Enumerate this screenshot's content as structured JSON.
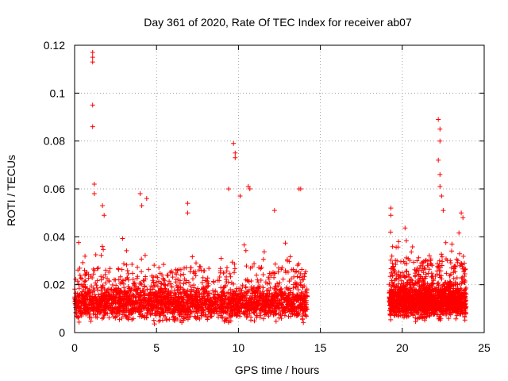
{
  "chart_data": {
    "type": "scatter",
    "title": "Day 361 of 2020, Rate Of TEC Index for receiver ab07",
    "xlabel": "GPS time / hours",
    "ylabel": "ROTI / TECUs",
    "xlim": [
      0,
      25
    ],
    "ylim": [
      0,
      0.12
    ],
    "x_ticks": [
      0,
      5,
      10,
      15,
      20,
      25
    ],
    "x_tick_labels": [
      "0",
      "5",
      "10",
      "15",
      "20",
      "25"
    ],
    "y_ticks": [
      0,
      0.02,
      0.04,
      0.06,
      0.08,
      0.1,
      0.12
    ],
    "y_tick_labels": [
      "0",
      "0.02",
      "0.04",
      "0.06",
      "0.08",
      "0.1",
      "0.12"
    ],
    "grid": true,
    "marker": "+",
    "series_color": "#ff0000",
    "series": [
      {
        "name": "ROTI",
        "segments": [
          {
            "start": 0.0,
            "end": 14.2,
            "baseline": 0.012,
            "spread": 0.014
          },
          {
            "start": 19.2,
            "end": 23.9,
            "baseline": 0.013,
            "spread": 0.016
          }
        ],
        "peaks": [
          {
            "x": 1.1,
            "y": 0.117
          },
          {
            "x": 1.1,
            "y": 0.115
          },
          {
            "x": 1.1,
            "y": 0.113
          },
          {
            "x": 1.1,
            "y": 0.095
          },
          {
            "x": 1.1,
            "y": 0.086
          },
          {
            "x": 1.2,
            "y": 0.062
          },
          {
            "x": 1.2,
            "y": 0.058
          },
          {
            "x": 1.7,
            "y": 0.053
          },
          {
            "x": 1.8,
            "y": 0.049
          },
          {
            "x": 4.0,
            "y": 0.058
          },
          {
            "x": 4.1,
            "y": 0.053
          },
          {
            "x": 4.4,
            "y": 0.056
          },
          {
            "x": 6.9,
            "y": 0.054
          },
          {
            "x": 6.9,
            "y": 0.05
          },
          {
            "x": 9.4,
            "y": 0.06
          },
          {
            "x": 9.7,
            "y": 0.079
          },
          {
            "x": 9.8,
            "y": 0.075
          },
          {
            "x": 9.8,
            "y": 0.073
          },
          {
            "x": 10.1,
            "y": 0.057
          },
          {
            "x": 10.6,
            "y": 0.061
          },
          {
            "x": 10.7,
            "y": 0.06
          },
          {
            "x": 12.2,
            "y": 0.051
          },
          {
            "x": 13.7,
            "y": 0.06
          },
          {
            "x": 13.8,
            "y": 0.06
          },
          {
            "x": 19.3,
            "y": 0.052
          },
          {
            "x": 19.3,
            "y": 0.049
          },
          {
            "x": 22.2,
            "y": 0.089
          },
          {
            "x": 22.3,
            "y": 0.085
          },
          {
            "x": 22.3,
            "y": 0.08
          },
          {
            "x": 22.2,
            "y": 0.072
          },
          {
            "x": 22.3,
            "y": 0.066
          },
          {
            "x": 22.3,
            "y": 0.061
          },
          {
            "x": 22.4,
            "y": 0.057
          },
          {
            "x": 22.5,
            "y": 0.051
          },
          {
            "x": 23.6,
            "y": 0.05
          },
          {
            "x": 23.7,
            "y": 0.048
          }
        ]
      }
    ]
  }
}
